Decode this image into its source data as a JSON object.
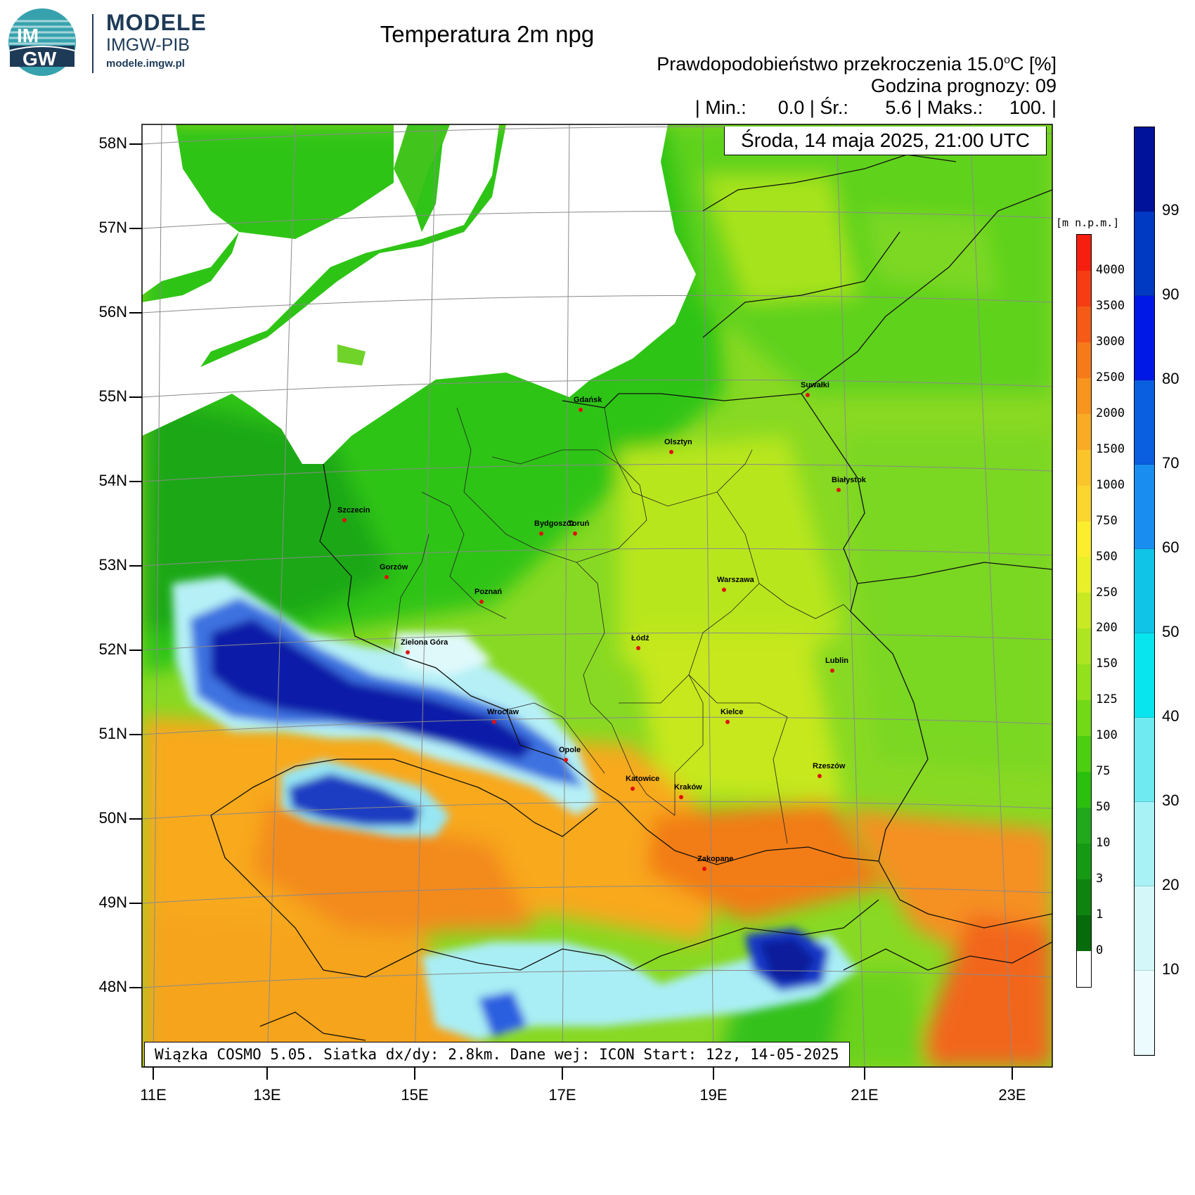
{
  "logo": {
    "badge_top": "IM",
    "badge_bottom": "GW",
    "title": "MODELE",
    "subtitle": "IMGW-PIB",
    "url": "modele.imgw.pl"
  },
  "header": {
    "title": "Temperatura 2m npg",
    "subtitle_main": "Prawdopodobieństwo przekroczenia 15.0",
    "subtitle_deg": "o",
    "subtitle_end": "C [%]",
    "forecast_hour": "Godzina prognozy: 09",
    "stats": "| Min.:      0.0 | Śr.:       5.6 | Maks.:     100. |",
    "date": "Środa, 14 maja 2025, 21:00 UTC"
  },
  "info_box": "Wiązka COSMO 5.05. Siatka dx/dy: 2.8km. Dane wej: ICON Start: 12z, 14-05-2025",
  "lat_labels": [
    "58N",
    "57N",
    "56N",
    "55N",
    "54N",
    "53N",
    "52N",
    "51N",
    "50N",
    "49N",
    "48N"
  ],
  "lon_labels": [
    "11E",
    "13E",
    "15E",
    "17E",
    "19E",
    "21E",
    "23E"
  ],
  "elevation_scale": {
    "unit": "[m n.p.m.]",
    "labels": [
      "4000",
      "3500",
      "3000",
      "2500",
      "2000",
      "1500",
      "1000",
      "750",
      "500",
      "250",
      "200",
      "150",
      "125",
      "100",
      "75",
      "50",
      "10",
      "3",
      "1",
      "0"
    ],
    "colors": [
      "#f51e0f",
      "#f53c12",
      "#f55a16",
      "#f77a1a",
      "#f8951e",
      "#f9ab25",
      "#fac42b",
      "#fbd62f",
      "#fdee2d",
      "#e9f02a",
      "#c9e925",
      "#aee522",
      "#93e01d",
      "#72d917",
      "#4ccf11",
      "#2bc00e",
      "#20a91a",
      "#159a14",
      "#0d8410",
      "#076b0b",
      "#ffffff"
    ]
  },
  "probability_scale": {
    "labels": [
      "99",
      "90",
      "80",
      "70",
      "60",
      "50",
      "40",
      "30",
      "20",
      "10"
    ],
    "colors": [
      "#00129a",
      "#0039c2",
      "#0018e6",
      "#0a5fe0",
      "#1a8ef0",
      "#10c4e8",
      "#08e5ee",
      "#6eeaf0",
      "#a8f2f6",
      "#d4f8fa",
      "#ecfcfe"
    ]
  },
  "cities": [
    {
      "name": "Gdańsk"
    },
    {
      "name": "Suwałki"
    },
    {
      "name": "Olsztyn"
    },
    {
      "name": "Białystok"
    },
    {
      "name": "Szczecin"
    },
    {
      "name": "Bydgoszcz"
    },
    {
      "name": "Toruń"
    },
    {
      "name": "Gorzów"
    },
    {
      "name": "Poznań"
    },
    {
      "name": "Warszawa"
    },
    {
      "name": "Zielona Góra"
    },
    {
      "name": "Łódź"
    },
    {
      "name": "Lublin"
    },
    {
      "name": "Wrocław"
    },
    {
      "name": "Kielce"
    },
    {
      "name": "Opole"
    },
    {
      "name": "Rzeszów"
    },
    {
      "name": "Katowice"
    },
    {
      "name": "Kraków"
    },
    {
      "name": "Zakopane"
    }
  ],
  "colors": {
    "sea": "#ffffff",
    "land_green": "#36c21e",
    "logo_navy": "#1d3a57",
    "logo_teal": "#3aa0a8"
  }
}
